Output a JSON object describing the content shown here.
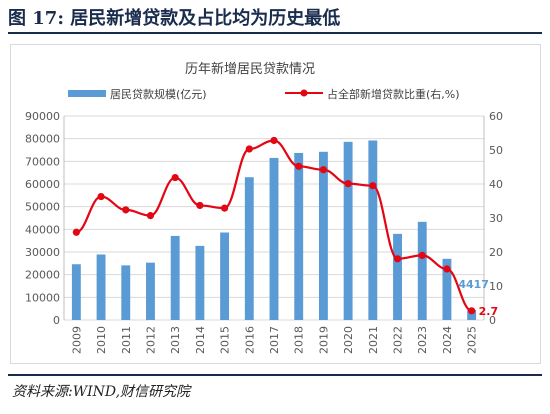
{
  "figure": {
    "title": "图 17:  居民新增贷款及占比均为历史最低",
    "source": "资料来源:WIND,财信研究院"
  },
  "colors": {
    "bar": "#5b9bd5",
    "line": "#e30613",
    "axis_text": "#595959",
    "grid": "#d9d9d9",
    "label_blue": "#5b9bd5",
    "label_red": "#e30613"
  },
  "chart_data": {
    "type": "bar",
    "title": "历年新增居民贷款情况",
    "xlabel": "",
    "ylabel": "",
    "legend_position": "top",
    "categories": [
      "2009",
      "2010",
      "2011",
      "2012",
      "2013",
      "2014",
      "2015",
      "2016",
      "2017",
      "2018",
      "2019",
      "2020",
      "2021",
      "2022",
      "2023",
      "2024",
      "2025"
    ],
    "y_left_ticks": [
      "0",
      "10000",
      "20000",
      "30000",
      "40000",
      "50000",
      "60000",
      "70000",
      "80000",
      "90000"
    ],
    "y_right_ticks": [
      "0",
      "10",
      "20",
      "30",
      "40",
      "50",
      "60"
    ],
    "ylim": [
      0,
      90000
    ],
    "y2lim": [
      0,
      60
    ],
    "series": [
      {
        "name": "居民贷款规模(亿元)",
        "type": "bar",
        "axis": "left",
        "values": [
          24600,
          28900,
          24100,
          25300,
          37100,
          32700,
          38600,
          63000,
          71500,
          73700,
          74200,
          78600,
          79200,
          38000,
          43300,
          27000,
          4417
        ]
      },
      {
        "name": "占全部新增贷款比重(右,%)",
        "type": "line",
        "axis": "right",
        "values": [
          25.8,
          36.3,
          32.4,
          30.7,
          41.9,
          33.7,
          32.9,
          50.3,
          52.8,
          45.2,
          44.2,
          40.1,
          39.5,
          18.0,
          19.0,
          15.0,
          2.7
        ]
      }
    ],
    "annotations": [
      {
        "text": "4417",
        "category": "2025",
        "series": "bar"
      },
      {
        "text": "2.7",
        "category": "2025",
        "series": "line"
      }
    ]
  }
}
